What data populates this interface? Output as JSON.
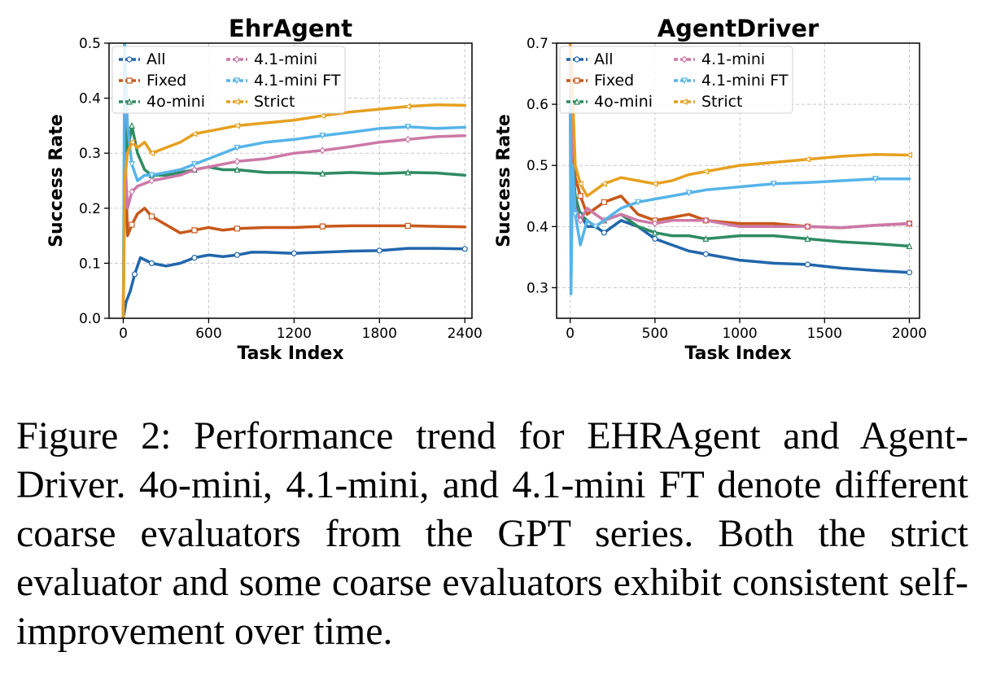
{
  "figure": {
    "caption": "Figure 2: Performance trend for EHRAgent and Agent-Driver. 4o-mini, 4.1-mini, and 4.1-mini FT denote different coarse evaluators from the GPT series. Both the strict evaluator and some coarse evaluators exhibit consistent self-improvement over time."
  },
  "chart_data": [
    {
      "type": "line",
      "title": "EhrAgent",
      "xlabel": "Task Index",
      "ylabel": "Success Rate",
      "xlim": [
        -100,
        2450
      ],
      "ylim": [
        0,
        0.5
      ],
      "xticks": [
        0,
        600,
        1200,
        1800,
        2400
      ],
      "xtick_labels": [
        "0",
        "600",
        "1200",
        "1800",
        "2400"
      ],
      "yticks": [
        0.0,
        0.1,
        0.2,
        0.3,
        0.4,
        0.5
      ],
      "ytick_labels": [
        "0.0",
        "0.1",
        "0.2",
        "0.3",
        "0.4",
        "0.5"
      ],
      "grid": true,
      "legend_position": "top-left",
      "series": [
        {
          "name": "All",
          "color": "#2166ac",
          "marker": "circle",
          "x": [
            0,
            20,
            50,
            80,
            120,
            160,
            200,
            300,
            400,
            500,
            600,
            700,
            800,
            900,
            1000,
            1200,
            1400,
            1600,
            1800,
            2000,
            2200,
            2400
          ],
          "y": [
            0.0,
            0.03,
            0.05,
            0.08,
            0.11,
            0.105,
            0.1,
            0.095,
            0.1,
            0.11,
            0.115,
            0.112,
            0.115,
            0.12,
            0.12,
            0.118,
            0.12,
            0.122,
            0.123,
            0.127,
            0.127,
            0.126
          ]
        },
        {
          "name": "Fixed",
          "color": "#c8581a",
          "marker": "square",
          "x": [
            0,
            10,
            30,
            60,
            100,
            150,
            200,
            300,
            400,
            500,
            600,
            700,
            800,
            1000,
            1200,
            1400,
            1600,
            1800,
            2000,
            2200,
            2400
          ],
          "y": [
            0.0,
            0.33,
            0.15,
            0.17,
            0.19,
            0.2,
            0.185,
            0.17,
            0.155,
            0.16,
            0.165,
            0.16,
            0.163,
            0.165,
            0.165,
            0.167,
            0.168,
            0.168,
            0.168,
            0.167,
            0.166
          ]
        },
        {
          "name": "4o-mini",
          "color": "#2e8b63",
          "marker": "triangle-up",
          "x": [
            0,
            10,
            30,
            60,
            100,
            150,
            200,
            300,
            400,
            500,
            600,
            700,
            800,
            1000,
            1200,
            1400,
            1600,
            1800,
            2000,
            2200,
            2400
          ],
          "y": [
            0.0,
            0.4,
            0.3,
            0.35,
            0.3,
            0.27,
            0.26,
            0.26,
            0.265,
            0.27,
            0.275,
            0.27,
            0.27,
            0.265,
            0.265,
            0.263,
            0.265,
            0.263,
            0.265,
            0.264,
            0.26
          ]
        },
        {
          "name": "4.1-mini",
          "color": "#cc79a7",
          "marker": "diamond",
          "x": [
            0,
            10,
            30,
            60,
            100,
            150,
            200,
            300,
            400,
            500,
            600,
            700,
            800,
            1000,
            1200,
            1400,
            1600,
            1800,
            2000,
            2200,
            2400
          ],
          "y": [
            0.0,
            0.3,
            0.2,
            0.23,
            0.24,
            0.245,
            0.25,
            0.255,
            0.26,
            0.27,
            0.275,
            0.28,
            0.285,
            0.29,
            0.3,
            0.305,
            0.312,
            0.32,
            0.325,
            0.33,
            0.332
          ]
        },
        {
          "name": "4.1-mini FT",
          "color": "#56b4e9",
          "marker": "triangle-down",
          "x": [
            0,
            10,
            30,
            60,
            100,
            150,
            200,
            300,
            400,
            500,
            600,
            700,
            800,
            1000,
            1200,
            1400,
            1600,
            1800,
            2000,
            2200,
            2400
          ],
          "y": [
            0.0,
            0.5,
            0.35,
            0.28,
            0.25,
            0.26,
            0.26,
            0.265,
            0.27,
            0.28,
            0.29,
            0.3,
            0.31,
            0.32,
            0.325,
            0.332,
            0.338,
            0.345,
            0.348,
            0.345,
            0.347
          ]
        },
        {
          "name": "Strict",
          "color": "#e6a020",
          "marker": "triangle-left",
          "x": [
            0,
            10,
            30,
            60,
            100,
            150,
            200,
            300,
            400,
            500,
            600,
            700,
            800,
            1000,
            1200,
            1400,
            1600,
            1800,
            2000,
            2200,
            2400
          ],
          "y": [
            0.0,
            0.25,
            0.3,
            0.32,
            0.31,
            0.32,
            0.3,
            0.31,
            0.32,
            0.335,
            0.34,
            0.345,
            0.35,
            0.355,
            0.36,
            0.368,
            0.375,
            0.38,
            0.385,
            0.388,
            0.387
          ]
        }
      ]
    },
    {
      "type": "line",
      "title": "AgentDriver",
      "xlabel": "Task Index",
      "ylabel": "Success Rate",
      "xlim": [
        -80,
        2060
      ],
      "ylim": [
        0.25,
        0.7
      ],
      "xticks": [
        0,
        500,
        1000,
        1500,
        2000
      ],
      "xtick_labels": [
        "0",
        "500",
        "1000",
        "1500",
        "2000"
      ],
      "yticks": [
        0.3,
        0.4,
        0.5,
        0.6,
        0.7
      ],
      "ytick_labels": [
        "0.3",
        "0.4",
        "0.5",
        "0.6",
        "0.7"
      ],
      "grid": true,
      "legend_position": "top-left",
      "series": [
        {
          "name": "All",
          "color": "#2166ac",
          "marker": "circle",
          "x": [
            0,
            10,
            30,
            60,
            100,
            150,
            200,
            300,
            400,
            500,
            600,
            700,
            800,
            1000,
            1200,
            1400,
            1600,
            1800,
            2000
          ],
          "y": [
            0.7,
            0.5,
            0.44,
            0.42,
            0.4,
            0.4,
            0.39,
            0.41,
            0.4,
            0.38,
            0.37,
            0.36,
            0.355,
            0.345,
            0.34,
            0.338,
            0.332,
            0.328,
            0.325
          ]
        },
        {
          "name": "Fixed",
          "color": "#c8581a",
          "marker": "square",
          "x": [
            0,
            10,
            30,
            60,
            100,
            150,
            200,
            300,
            400,
            500,
            600,
            700,
            800,
            1000,
            1200,
            1400,
            1600,
            1800,
            2000
          ],
          "y": [
            0.7,
            0.55,
            0.48,
            0.45,
            0.42,
            0.43,
            0.44,
            0.45,
            0.42,
            0.41,
            0.415,
            0.42,
            0.41,
            0.405,
            0.405,
            0.4,
            0.398,
            0.402,
            0.405
          ]
        },
        {
          "name": "4o-mini",
          "color": "#2e8b63",
          "marker": "triangle-up",
          "x": [
            0,
            10,
            30,
            60,
            100,
            150,
            200,
            300,
            400,
            500,
            600,
            700,
            800,
            1000,
            1200,
            1400,
            1600,
            1800,
            2000
          ],
          "y": [
            0.7,
            0.52,
            0.45,
            0.42,
            0.41,
            0.4,
            0.41,
            0.42,
            0.4,
            0.39,
            0.385,
            0.385,
            0.38,
            0.385,
            0.385,
            0.38,
            0.375,
            0.372,
            0.368
          ]
        },
        {
          "name": "4.1-mini",
          "color": "#cc79a7",
          "marker": "diamond",
          "x": [
            0,
            10,
            30,
            60,
            100,
            150,
            200,
            300,
            400,
            500,
            600,
            700,
            800,
            1000,
            1200,
            1400,
            1600,
            1800,
            2000
          ],
          "y": [
            0.7,
            0.5,
            0.43,
            0.41,
            0.43,
            0.42,
            0.41,
            0.42,
            0.41,
            0.405,
            0.41,
            0.41,
            0.41,
            0.4,
            0.4,
            0.4,
            0.398,
            0.402,
            0.405
          ]
        },
        {
          "name": "4.1-mini FT",
          "color": "#56b4e9",
          "marker": "triangle-down",
          "x": [
            0,
            5,
            15,
            30,
            60,
            100,
            150,
            200,
            300,
            400,
            500,
            600,
            700,
            800,
            1000,
            1200,
            1400,
            1600,
            1800,
            2000
          ],
          "y": [
            0.6,
            0.29,
            0.5,
            0.42,
            0.37,
            0.41,
            0.4,
            0.41,
            0.43,
            0.44,
            0.445,
            0.45,
            0.455,
            0.46,
            0.465,
            0.47,
            0.472,
            0.475,
            0.478,
            0.478
          ]
        },
        {
          "name": "Strict",
          "color": "#e6a020",
          "marker": "triangle-left",
          "x": [
            0,
            10,
            30,
            60,
            100,
            150,
            200,
            300,
            400,
            500,
            600,
            700,
            800,
            1000,
            1200,
            1400,
            1600,
            1800,
            2000
          ],
          "y": [
            0.7,
            0.65,
            0.5,
            0.47,
            0.45,
            0.46,
            0.47,
            0.48,
            0.475,
            0.47,
            0.475,
            0.485,
            0.49,
            0.5,
            0.505,
            0.51,
            0.515,
            0.518,
            0.517
          ]
        }
      ]
    }
  ]
}
